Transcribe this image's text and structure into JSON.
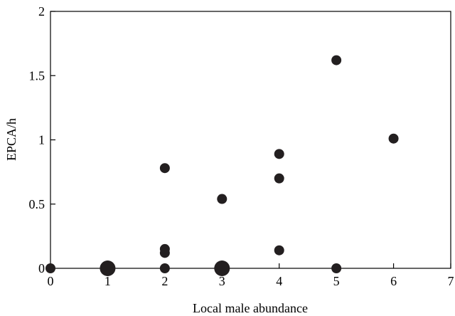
{
  "chart_data": {
    "type": "scatter",
    "title": "",
    "xlabel": "Local male abundance",
    "ylabel": "EPCA/h",
    "xlim": [
      0,
      7
    ],
    "ylim": [
      0,
      2
    ],
    "xticks": [
      0,
      1,
      2,
      3,
      4,
      5,
      6,
      7
    ],
    "xtick_labels": [
      "0",
      "1",
      "2",
      "3",
      "4",
      "5",
      "6",
      "7"
    ],
    "yticks": [
      0,
      0.5,
      1,
      1.5,
      2
    ],
    "ytick_labels": [
      "0",
      "0.5",
      "1",
      "1.5",
      "2"
    ],
    "grid": false,
    "legend": "none",
    "marker_color": "#231f20",
    "points": [
      {
        "x": 0,
        "y": 0,
        "large": false
      },
      {
        "x": 1,
        "y": 0,
        "large": true
      },
      {
        "x": 2,
        "y": 0,
        "large": false
      },
      {
        "x": 2,
        "y": 0.12,
        "large": false
      },
      {
        "x": 2,
        "y": 0.15,
        "large": false
      },
      {
        "x": 2,
        "y": 0.78,
        "large": false
      },
      {
        "x": 3,
        "y": 0,
        "large": true
      },
      {
        "x": 3,
        "y": 0.54,
        "large": false
      },
      {
        "x": 4,
        "y": 0.14,
        "large": false
      },
      {
        "x": 4,
        "y": 0.7,
        "large": false
      },
      {
        "x": 4,
        "y": 0.89,
        "large": false
      },
      {
        "x": 5,
        "y": 0,
        "large": false
      },
      {
        "x": 5,
        "y": 1.62,
        "large": false
      },
      {
        "x": 6,
        "y": 1.01,
        "large": false
      }
    ]
  }
}
